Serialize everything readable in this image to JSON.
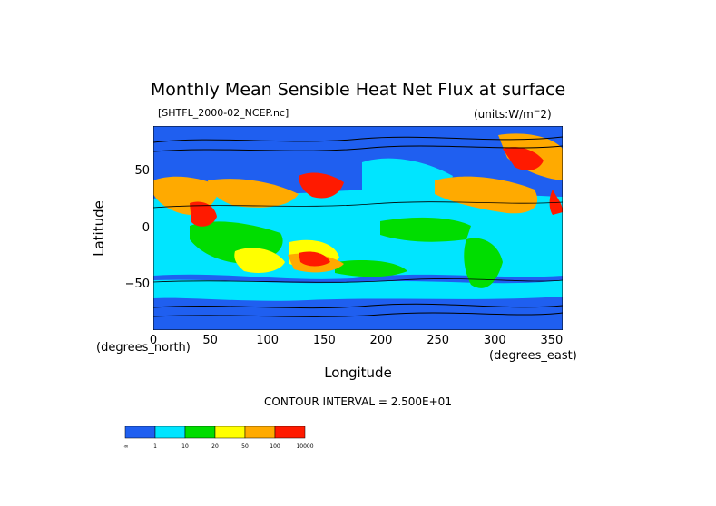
{
  "title": "Monthly Mean Sensible Heat Net Flux at surface",
  "file_label": "[SHTFL_2000-02_NCEP.nc]",
  "units_label": "(units:W/m^-2)",
  "y_axis": {
    "label": "Latitude",
    "ticks": [
      "50",
      "0",
      "−50"
    ],
    "unit": "(degrees_north)"
  },
  "x_axis": {
    "label": "Longitude",
    "ticks": [
      "0",
      "50",
      "100",
      "150",
      "200",
      "250",
      "300",
      "350"
    ],
    "unit": "(degrees_east)"
  },
  "contour_text": "CONTOUR INTERVAL = 2.500E+01",
  "legend": {
    "colors": [
      "#1f5ff0",
      "#00e5ff",
      "#00dd00",
      "#ffff00",
      "#ffaa00",
      "#ff1a00"
    ],
    "labels": [
      "-∞",
      "1",
      "10",
      "20",
      "50",
      "100",
      "10000"
    ]
  },
  "map": {
    "lon_range": [
      0,
      360
    ],
    "lat_range": [
      -90,
      90
    ],
    "base_color": "#1f5ff0"
  }
}
